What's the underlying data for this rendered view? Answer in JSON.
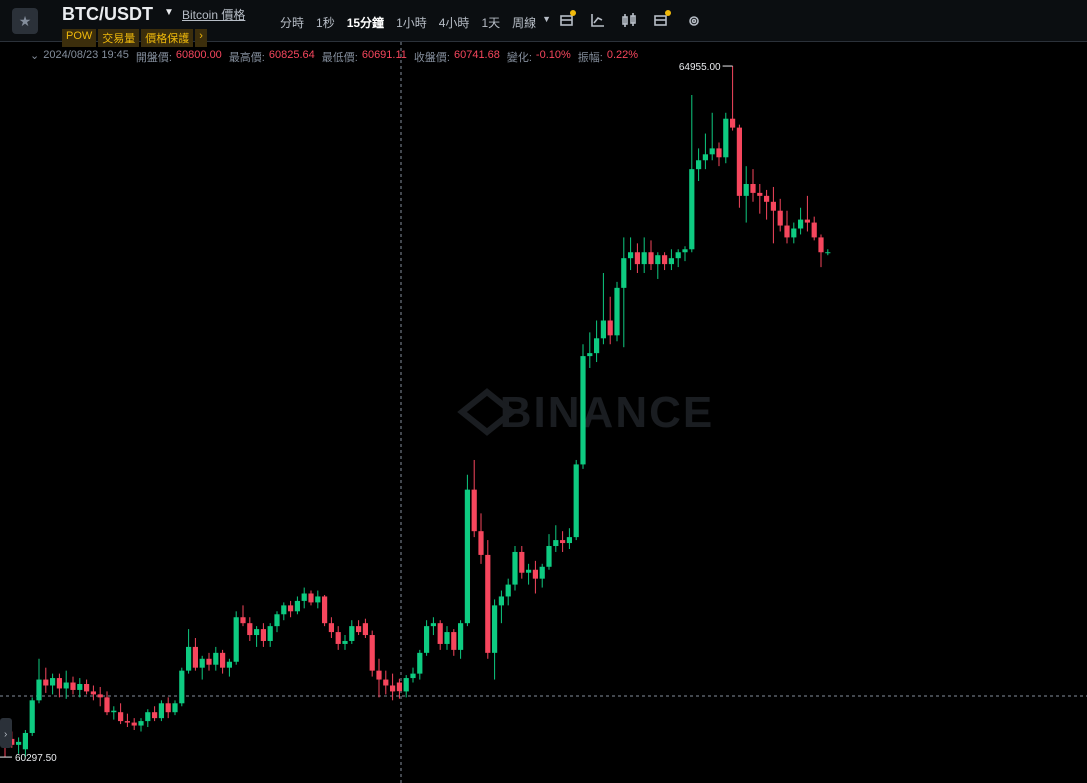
{
  "header": {
    "symbol": "BTC/USDT",
    "asset_link": "Bitcoin 價格",
    "tags": [
      "POW",
      "交易量",
      "價格保護"
    ],
    "intervals": [
      "分時",
      "1秒",
      "15分鐘",
      "1小時",
      "4小時",
      "1天",
      "周線"
    ]
  },
  "info_bar": {
    "time": "2024/08/23 19:45",
    "items": [
      {
        "label": "開盤價:",
        "value": "60800.00"
      },
      {
        "label": "最高價:",
        "value": "60825.64"
      },
      {
        "label": "最低價:",
        "value": "60691.11"
      },
      {
        "label": "收盤價:",
        "value": "60741.68"
      },
      {
        "label": "變化:",
        "value": "-0.10%"
      },
      {
        "label": "振幅:",
        "value": "0.22%"
      }
    ]
  },
  "chart_data": {
    "type": "candlestick",
    "watermark": "BINANCE",
    "up_color": "#0ecb81",
    "down_color": "#f6465d",
    "ylim": [
      60143,
      65117
    ],
    "price_marks": [
      {
        "value": 64955,
        "label": "64955.00"
      },
      {
        "value": 60297.5,
        "label": "60297.50"
      }
    ],
    "candles": [
      [
        60450,
        60500,
        60300,
        60420
      ],
      [
        60420,
        60470,
        60360,
        60380
      ],
      [
        60380,
        60430,
        60320,
        60400
      ],
      [
        60350,
        60480,
        60297.5,
        60460
      ],
      [
        60460,
        60700,
        60440,
        60680
      ],
      [
        60680,
        60960,
        60660,
        60820
      ],
      [
        60820,
        60900,
        60730,
        60780
      ],
      [
        60780,
        60860,
        60720,
        60830
      ],
      [
        60830,
        60860,
        60700,
        60760
      ],
      [
        60760,
        60880,
        60690,
        60800
      ],
      [
        60800,
        60840,
        60720,
        60750
      ],
      [
        60750,
        60830,
        60700,
        60790
      ],
      [
        60790,
        60820,
        60720,
        60740
      ],
      [
        60740,
        60780,
        60680,
        60720
      ],
      [
        60720,
        60770,
        60640,
        60700
      ],
      [
        60700,
        60740,
        60580,
        60600
      ],
      [
        60600,
        60640,
        60550,
        60610
      ],
      [
        60600,
        60660,
        60520,
        60540
      ],
      [
        60540,
        60590,
        60500,
        60530
      ],
      [
        60530,
        60560,
        60480,
        60510
      ],
      [
        60510,
        60560,
        60470,
        60540
      ],
      [
        60540,
        60620,
        60500,
        60600
      ],
      [
        60600,
        60640,
        60540,
        60560
      ],
      [
        60560,
        60680,
        60540,
        60660
      ],
      [
        60660,
        60700,
        60560,
        60600
      ],
      [
        60600,
        60680,
        60580,
        60660
      ],
      [
        60660,
        60900,
        60640,
        60880
      ],
      [
        60880,
        61160,
        60860,
        61040
      ],
      [
        61040,
        61100,
        60880,
        60900
      ],
      [
        60900,
        60980,
        60820,
        60960
      ],
      [
        60960,
        61000,
        60880,
        60920
      ],
      [
        60920,
        61040,
        60880,
        61000
      ],
      [
        61000,
        61020,
        60860,
        60900
      ],
      [
        60900,
        60960,
        60840,
        60940
      ],
      [
        60940,
        61280,
        60920,
        61240
      ],
      [
        61240,
        61320,
        61180,
        61200
      ],
      [
        61200,
        61240,
        61080,
        61120
      ],
      [
        61120,
        61180,
        61040,
        61160
      ],
      [
        61160,
        61200,
        61040,
        61080
      ],
      [
        61080,
        61200,
        61040,
        61180
      ],
      [
        61180,
        61280,
        61140,
        61260
      ],
      [
        61260,
        61340,
        61220,
        61320
      ],
      [
        61320,
        61350,
        61240,
        61280
      ],
      [
        61280,
        61380,
        61260,
        61350
      ],
      [
        61350,
        61440,
        61300,
        61400
      ],
      [
        61400,
        61420,
        61320,
        61340
      ],
      [
        61340,
        61420,
        61300,
        61380
      ],
      [
        61380,
        61390,
        61180,
        61200
      ],
      [
        61200,
        61240,
        61100,
        61140
      ],
      [
        61140,
        61180,
        61020,
        61060
      ],
      [
        61060,
        61120,
        61020,
        61080
      ],
      [
        61080,
        61220,
        61060,
        61180
      ],
      [
        61180,
        61220,
        61120,
        61140
      ],
      [
        61200,
        61230,
        61100,
        61120
      ],
      [
        61120,
        61150,
        60840,
        60880
      ],
      [
        60880,
        60960,
        60700,
        60820
      ],
      [
        60820,
        60880,
        60720,
        60780
      ],
      [
        60780,
        60860,
        60680,
        60740
      ],
      [
        60800,
        60825.64,
        60691.11,
        60741.68
      ],
      [
        60740,
        60850,
        60700,
        60830
      ],
      [
        60830,
        60900,
        60800,
        60860
      ],
      [
        60860,
        61020,
        60820,
        61000
      ],
      [
        61000,
        61220,
        60980,
        61180
      ],
      [
        61180,
        61240,
        61120,
        61200
      ],
      [
        61200,
        61220,
        61020,
        61060
      ],
      [
        61060,
        61180,
        61020,
        61140
      ],
      [
        61140,
        61160,
        60980,
        61020
      ],
      [
        61020,
        61220,
        60960,
        61200
      ],
      [
        61200,
        62200,
        61180,
        62100
      ],
      [
        62100,
        62300,
        61780,
        61820
      ],
      [
        61820,
        61940,
        61600,
        61660
      ],
      [
        61660,
        61760,
        60960,
        61000
      ],
      [
        61000,
        61360,
        60820,
        61320
      ],
      [
        61320,
        61420,
        61200,
        61380
      ],
      [
        61380,
        61500,
        61320,
        61460
      ],
      [
        61460,
        61720,
        61420,
        61680
      ],
      [
        61680,
        61720,
        61500,
        61540
      ],
      [
        61540,
        61600,
        61460,
        61560
      ],
      [
        61560,
        61620,
        61400,
        61500
      ],
      [
        61500,
        61600,
        61440,
        61580
      ],
      [
        61580,
        61800,
        61560,
        61720
      ],
      [
        61720,
        61860,
        61680,
        61760
      ],
      [
        61760,
        61820,
        61680,
        61740
      ],
      [
        61740,
        61840,
        61700,
        61780
      ],
      [
        61780,
        62300,
        61760,
        62270
      ],
      [
        62270,
        63080,
        62240,
        63000
      ],
      [
        63000,
        63160,
        62920,
        63020
      ],
      [
        63020,
        63240,
        62960,
        63120
      ],
      [
        63120,
        63560,
        63080,
        63240
      ],
      [
        63240,
        63400,
        63080,
        63140
      ],
      [
        63140,
        63500,
        63100,
        63460
      ],
      [
        63460,
        63800,
        63060,
        63660
      ],
      [
        63660,
        63800,
        63580,
        63700
      ],
      [
        63700,
        63760,
        63560,
        63620
      ],
      [
        63620,
        63800,
        63560,
        63700
      ],
      [
        63700,
        63780,
        63580,
        63620
      ],
      [
        63620,
        63700,
        63520,
        63680
      ],
      [
        63680,
        63700,
        63580,
        63620
      ],
      [
        63620,
        63720,
        63580,
        63660
      ],
      [
        63660,
        63720,
        63600,
        63700
      ],
      [
        63700,
        63740,
        63640,
        63720
      ],
      [
        63720,
        64760,
        63700,
        64260
      ],
      [
        64260,
        64400,
        64180,
        64320
      ],
      [
        64320,
        64500,
        64260,
        64360
      ],
      [
        64360,
        64640,
        64320,
        64400
      ],
      [
        64400,
        64440,
        64280,
        64340
      ],
      [
        64340,
        64640,
        64300,
        64600
      ],
      [
        64600,
        64955,
        64520,
        64540
      ],
      [
        64540,
        64560,
        64000,
        64080
      ],
      [
        64080,
        64280,
        63900,
        64160
      ],
      [
        64160,
        64260,
        64040,
        64100
      ],
      [
        64100,
        64160,
        63960,
        64080
      ],
      [
        64080,
        64120,
        63920,
        64040
      ],
      [
        64040,
        64140,
        63760,
        63980
      ],
      [
        63980,
        64060,
        63840,
        63880
      ],
      [
        63880,
        63980,
        63760,
        63800
      ],
      [
        63800,
        63900,
        63760,
        63860
      ],
      [
        63860,
        64000,
        63820,
        63920
      ],
      [
        63920,
        64080,
        63840,
        63900
      ],
      [
        63900,
        63940,
        63780,
        63800
      ],
      [
        63800,
        63820,
        63600,
        63700
      ],
      [
        63700,
        63720,
        63680,
        63700
      ]
    ]
  }
}
